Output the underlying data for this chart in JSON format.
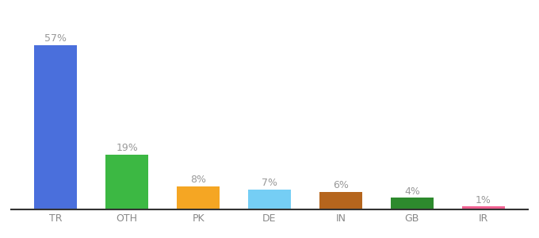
{
  "categories": [
    "TR",
    "OTH",
    "PK",
    "DE",
    "IN",
    "GB",
    "IR"
  ],
  "values": [
    57,
    19,
    8,
    7,
    6,
    4,
    1
  ],
  "bar_colors": [
    "#4a6fdc",
    "#3cb843",
    "#f5a623",
    "#75cef5",
    "#b5651d",
    "#2d8a2d",
    "#f06292"
  ],
  "labels": [
    "57%",
    "19%",
    "8%",
    "7%",
    "6%",
    "4%",
    "1%"
  ],
  "label_fontsize": 9,
  "tick_fontsize": 9,
  "ylim": [
    0,
    66
  ],
  "background_color": "#ffffff",
  "label_color": "#999999",
  "tick_color": "#888888",
  "bottom_spine_color": "#333333"
}
